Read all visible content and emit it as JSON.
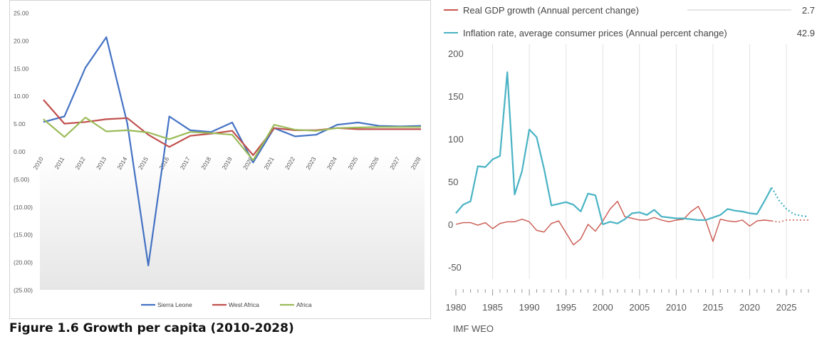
{
  "caption": "Figure 1.6 Growth per capita (2010-2028)",
  "source": "IMF WEO",
  "chart_data": [
    {
      "type": "line",
      "title": "",
      "xlabel": "",
      "ylabel": "",
      "categories": [
        "2010",
        "2011",
        "2012",
        "2013",
        "2014",
        "2015",
        "2016",
        "2017",
        "2018",
        "2019",
        "2020",
        "2021",
        "2022",
        "2023",
        "2024",
        "2025",
        "2026",
        "2027",
        "2028"
      ],
      "y_tick_labels": [
        "25.00",
        "20.00",
        "15.00",
        "10.00",
        "5.00",
        "0.00",
        "(5.00)",
        "(10.00)",
        "(15.00)",
        "(20.00)",
        "(25.00)"
      ],
      "ylim": [
        -25,
        25
      ],
      "grid": false,
      "legend_position": "bottom",
      "series": [
        {
          "name": "Sierra Leone",
          "color": "#4472c4",
          "values": [
            5.3,
            6.3,
            15.1,
            20.6,
            5.0,
            -20.6,
            6.3,
            3.8,
            3.5,
            5.2,
            -2.0,
            4.2,
            2.7,
            3.0,
            4.8,
            5.2,
            4.6,
            4.5,
            4.6
          ]
        },
        {
          "name": "West Africa",
          "color": "#c0504d",
          "values": [
            9.3,
            5.0,
            5.3,
            5.8,
            6.0,
            3.0,
            0.8,
            2.8,
            3.2,
            3.7,
            -0.7,
            4.2,
            3.8,
            3.8,
            4.2,
            4.0,
            4.0,
            4.0,
            4.0
          ]
        },
        {
          "name": "Africa",
          "color": "#9bbb59",
          "values": [
            5.8,
            2.6,
            6.1,
            3.6,
            3.8,
            3.4,
            2.2,
            3.5,
            3.3,
            3.0,
            -1.6,
            4.8,
            3.9,
            3.7,
            4.2,
            4.3,
            4.4,
            4.4,
            4.4
          ]
        }
      ]
    },
    {
      "type": "line",
      "title": "",
      "xlabel": "",
      "ylabel": "",
      "x_tick_labels": [
        "1980",
        "1985",
        "1990",
        "1995",
        "2000",
        "2005",
        "2010",
        "2015",
        "2020",
        "2025"
      ],
      "y_tick_labels": [
        "200",
        "150",
        "100",
        "50",
        "0",
        "-50"
      ],
      "xlim": [
        1980,
        2028
      ],
      "ylim": [
        -50,
        200
      ],
      "grid": true,
      "legend_position": "top",
      "projection_start_year": 2023,
      "series": [
        {
          "name": "Real GDP growth (Annual percent change)",
          "latest_value": "2.7",
          "color": "#c9574e",
          "x": [
            1980,
            1981,
            1982,
            1983,
            1984,
            1985,
            1986,
            1987,
            1988,
            1989,
            1990,
            1991,
            1992,
            1993,
            1994,
            1995,
            1996,
            1997,
            1998,
            1999,
            2000,
            2001,
            2002,
            2003,
            2004,
            2005,
            2006,
            2007,
            2008,
            2009,
            2010,
            2011,
            2012,
            2013,
            2014,
            2015,
            2016,
            2017,
            2018,
            2019,
            2020,
            2021,
            2022,
            2023,
            2024,
            2025,
            2026,
            2027,
            2028
          ],
          "y": [
            0,
            2,
            2,
            -1,
            2,
            -5,
            1,
            3,
            3,
            6,
            3,
            -7,
            -9,
            1,
            4,
            -10,
            -24,
            -17,
            0,
            -8,
            4,
            18,
            27,
            9,
            7,
            5,
            5,
            8,
            5,
            3,
            5,
            6,
            15,
            21,
            5,
            -20,
            6,
            4,
            3,
            5,
            -2,
            4,
            5,
            4,
            2.7,
            5,
            5,
            5,
            5
          ]
        },
        {
          "name": "Inflation rate, average consumer prices (Annual percent change)",
          "latest_value": "42.9",
          "color": "#49b3c4",
          "x": [
            1980,
            1981,
            1982,
            1983,
            1984,
            1985,
            1986,
            1987,
            1988,
            1989,
            1990,
            1991,
            1992,
            1993,
            1994,
            1995,
            1996,
            1997,
            1998,
            1999,
            2000,
            2001,
            2002,
            2003,
            2004,
            2005,
            2006,
            2007,
            2008,
            2009,
            2010,
            2011,
            2012,
            2013,
            2014,
            2015,
            2016,
            2017,
            2018,
            2019,
            2020,
            2021,
            2022,
            2023,
            2024,
            2025,
            2026,
            2027,
            2028
          ],
          "y": [
            13,
            23,
            27,
            68,
            67,
            76,
            80,
            178,
            35,
            62,
            111,
            102,
            65,
            22,
            24,
            26,
            23,
            15,
            36,
            34,
            0,
            3,
            1,
            6,
            13,
            14,
            11,
            17,
            9,
            8,
            7,
            7,
            6,
            5,
            5,
            8,
            11,
            18,
            16,
            15,
            13,
            12,
            27,
            42.9,
            28,
            18,
            12,
            10,
            9
          ]
        }
      ]
    }
  ]
}
